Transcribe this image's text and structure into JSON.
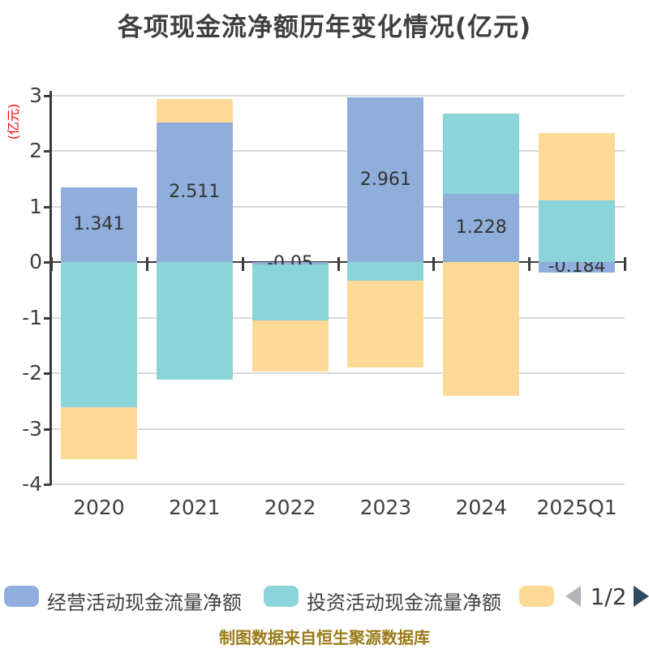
{
  "title": "各项现金流净额历年变化情况(亿元)",
  "chart_data": {
    "type": "bar",
    "stacked": true,
    "title": "各项现金流净额历年变化情况(亿元)",
    "ylabel": "(亿元)",
    "ylim": [
      -4,
      3
    ],
    "y_ticks": [
      3,
      2,
      1,
      0,
      -1,
      -2,
      -3,
      -4
    ],
    "grid": true,
    "legend_position": "bottom",
    "categories": [
      "2020",
      "2021",
      "2022",
      "2023",
      "2024",
      "2025Q1"
    ],
    "series": [
      {
        "name": "经营活动现金流量净额",
        "color": "#8faedb",
        "values": [
          1.341,
          2.511,
          -0.05,
          2.961,
          1.228,
          -0.184
        ],
        "labels": [
          "1.341",
          "2.511",
          "-0.05",
          "2.961",
          "1.228",
          "-0.184"
        ],
        "show_labels": true
      },
      {
        "name": "投资活动现金流量净额",
        "color": "#8bd4da",
        "values": [
          -2.61,
          -2.11,
          -1.0,
          -0.34,
          1.44,
          1.11
        ],
        "show_labels": false
      },
      {
        "name": "",
        "color": "#ffda96",
        "values": [
          -0.94,
          0.43,
          -0.92,
          -1.56,
          -2.41,
          1.21
        ],
        "show_labels": false
      }
    ]
  },
  "legend": {
    "items": [
      {
        "label": "经营活动现金流量净额",
        "color": "#8faedb"
      },
      {
        "label": "投资活动现金流量净额",
        "color": "#8bd4da"
      },
      {
        "label": "",
        "color": "#ffda96"
      }
    ],
    "pagination": {
      "page_indicator": "1/2"
    }
  },
  "footer": {
    "caption": "制图数据来自恒生聚源数据库"
  },
  "colors": {
    "background": "#ffffff",
    "grid": "#d8d8d8",
    "axis": "#3b3b3b",
    "tick_label": "#404040",
    "title": "#3f3f3f",
    "y_axis_title": "#ff0000",
    "value_label": "#333333",
    "caption": "#9a7b19",
    "prev_arrow": "#b1b5b9",
    "next_arrow": "#2f4b5e"
  }
}
